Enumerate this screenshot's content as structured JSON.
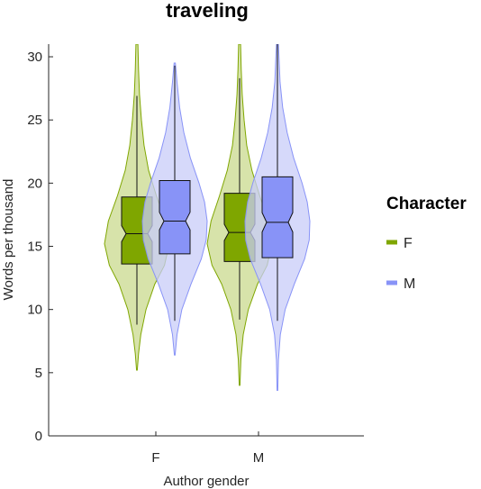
{
  "chart_data": {
    "type": "violin",
    "title": "traveling",
    "xlabel": "Author gender",
    "ylabel": "Words per thousand",
    "categories": [
      "F",
      "M"
    ],
    "ylim": [
      0,
      31
    ],
    "yticks": [
      0,
      5,
      10,
      15,
      20,
      25,
      30
    ],
    "grid": false,
    "legend": {
      "title": "Character",
      "position": "right",
      "entries": [
        "F",
        "M"
      ]
    },
    "series": [
      {
        "name": "F",
        "color": "#7fa600",
        "fill": "#c9da8e",
        "groups": [
          {
            "category": "F",
            "min": 5.2,
            "max": 31.0,
            "whisker_low": 8.8,
            "whisker_high": 26.9,
            "q1": 13.6,
            "median": 16.0,
            "q3": 18.9,
            "density_y": [
              5.2,
              6.5,
              8,
              10,
              12,
              13.5,
              15.2,
              17,
              19,
              21,
              23,
              25,
              27,
              29,
              31
            ],
            "density_w": [
              0.01,
              0.05,
              0.12,
              0.28,
              0.55,
              0.85,
              1.0,
              0.88,
              0.6,
              0.36,
              0.22,
              0.14,
              0.08,
              0.05,
              0.03
            ]
          },
          {
            "category": "M",
            "min": 4.0,
            "max": 31.0,
            "whisker_low": 9.2,
            "whisker_high": 28.3,
            "q1": 13.8,
            "median": 16.1,
            "q3": 19.2,
            "density_y": [
              4.0,
              6,
              8,
              10,
              12,
              13.5,
              15.2,
              17,
              19,
              21,
              23,
              25,
              27,
              29,
              31
            ],
            "density_w": [
              0.01,
              0.04,
              0.11,
              0.27,
              0.55,
              0.85,
              1.0,
              0.88,
              0.62,
              0.38,
              0.22,
              0.14,
              0.08,
              0.05,
              0.03
            ]
          }
        ]
      },
      {
        "name": "M",
        "color": "#8893f7",
        "fill": "#c8ccf8",
        "groups": [
          {
            "category": "F",
            "min": 6.4,
            "max": 29.5,
            "whisker_low": 9.1,
            "whisker_high": 29.3,
            "q1": 14.4,
            "median": 17.0,
            "q3": 20.2,
            "density_y": [
              6.4,
              8,
              10,
              12,
              14,
              15.5,
              17,
              18.5,
              20,
              22,
              24,
              26,
              28,
              29.5
            ],
            "density_w": [
              0.01,
              0.07,
              0.22,
              0.5,
              0.82,
              0.97,
              1.0,
              0.92,
              0.75,
              0.48,
              0.28,
              0.15,
              0.07,
              0.02
            ]
          },
          {
            "category": "M",
            "min": 3.6,
            "max": 31.0,
            "whisker_low": 9.1,
            "whisker_high": 31.0,
            "q1": 14.1,
            "median": 16.9,
            "q3": 20.5,
            "density_y": [
              3.6,
              6,
              8,
              10,
              12,
              14,
              15.5,
              17,
              18.5,
              20,
              22,
              24,
              26,
              28,
              31
            ],
            "density_w": [
              0.01,
              0.03,
              0.09,
              0.24,
              0.52,
              0.84,
              0.98,
              1.0,
              0.92,
              0.76,
              0.5,
              0.3,
              0.16,
              0.08,
              0.03
            ]
          }
        ]
      }
    ]
  }
}
